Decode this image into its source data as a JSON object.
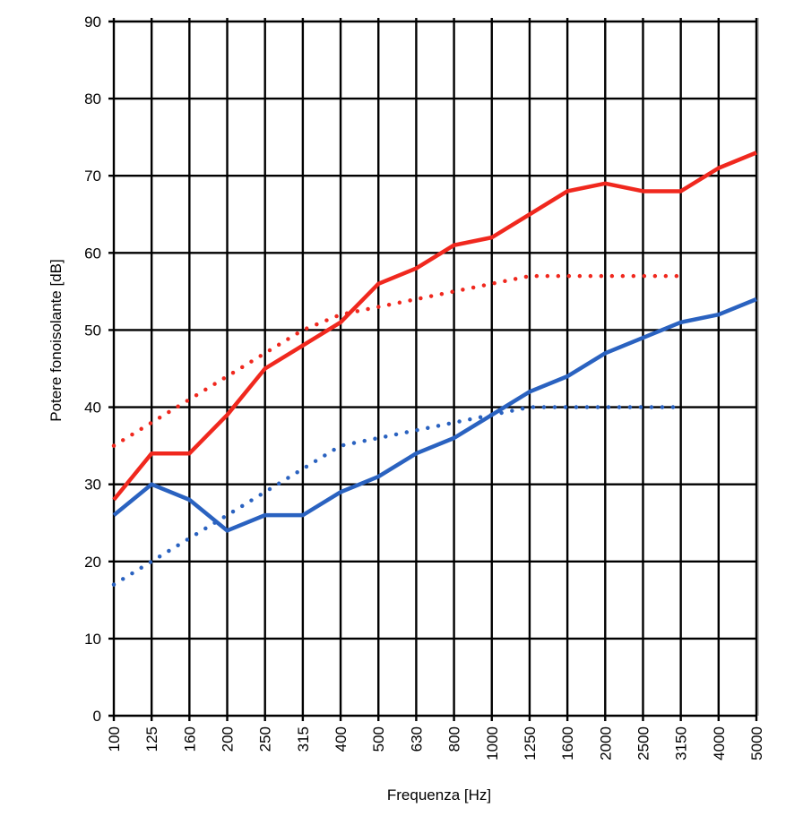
{
  "chart_data": {
    "type": "line",
    "xlabel": "Frequenza [Hz]",
    "ylabel": "Potere fonoisolante [dB]",
    "ylim": [
      0,
      90
    ],
    "yticks": [
      0,
      10,
      20,
      30,
      40,
      50,
      60,
      70,
      80,
      90
    ],
    "grid": true,
    "categories": [
      "100",
      "125",
      "160",
      "200",
      "250",
      "315",
      "400",
      "500",
      "630",
      "800",
      "1000",
      "1250",
      "1600",
      "2000",
      "2500",
      "3150",
      "4000",
      "5000"
    ],
    "series": [
      {
        "color": "#f0281e",
        "style": "solid",
        "values": [
          28,
          34,
          34,
          39,
          45,
          48,
          51,
          56,
          58,
          61,
          62,
          65,
          68,
          69,
          68,
          68,
          71,
          73
        ]
      },
      {
        "color": "#f0281e",
        "style": "dotted",
        "values": [
          35,
          38,
          41,
          44,
          47,
          50,
          52,
          53,
          54,
          55,
          56,
          57,
          57,
          57,
          57,
          57,
          null,
          null
        ]
      },
      {
        "color": "#2a62c0",
        "style": "solid",
        "values": [
          26,
          30,
          28,
          24,
          26,
          26,
          29,
          31,
          34,
          36,
          39,
          42,
          44,
          47,
          49,
          51,
          52,
          54
        ]
      },
      {
        "color": "#2a62c0",
        "style": "dotted",
        "values": [
          17,
          20,
          23,
          26,
          29,
          32,
          35,
          36,
          37,
          38,
          39,
          40,
          40,
          40,
          40,
          40,
          null,
          null
        ]
      }
    ]
  }
}
